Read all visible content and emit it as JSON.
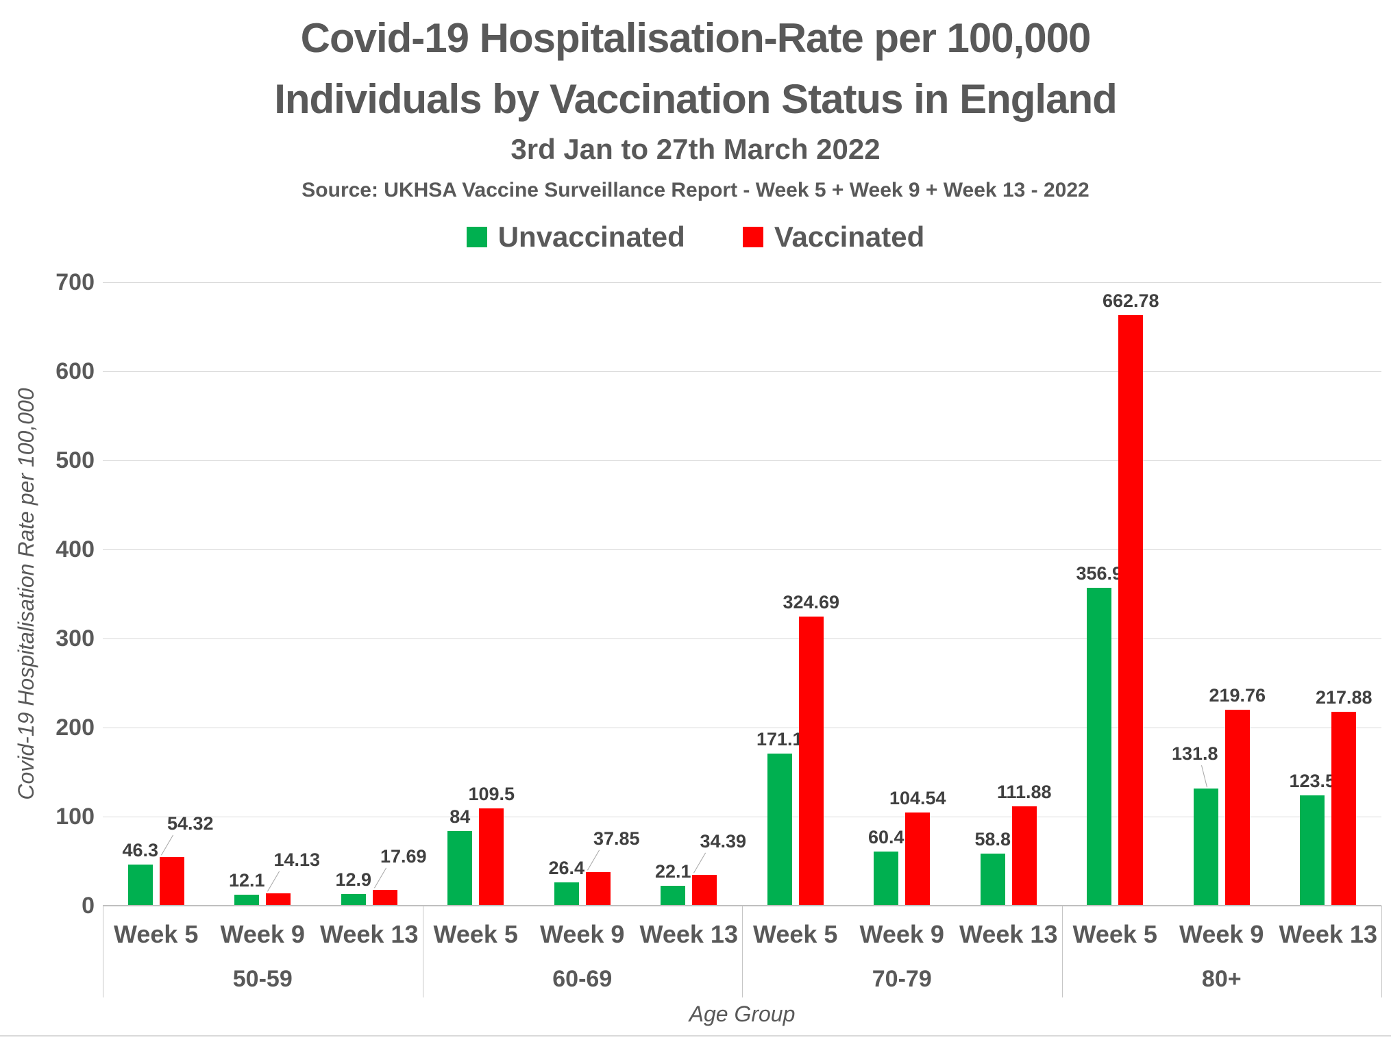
{
  "header": {
    "title_line1": "Covid-19 Hospitalisation-Rate per 100,000",
    "title_line2": "Individuals by Vaccination Status in England",
    "subtitle": "3rd Jan to 27th March 2022",
    "source": "Source: UKHSA Vaccine Surveillance Report - Week 5 + Week 9 + Week 13 - 2022"
  },
  "legend": [
    {
      "label": "Unvaccinated",
      "color": "#00B050"
    },
    {
      "label": "Vaccinated",
      "color": "#FF0000"
    }
  ],
  "chart_data": {
    "type": "bar",
    "title": "Covid-19 Hospitalisation-Rate per 100,000 Individuals by Vaccination Status in England",
    "subtitle": "3rd Jan to 27th March 2022",
    "xlabel": "Age Group",
    "ylabel": "Covid-19 Hospitalisation Rate per 100,000",
    "ylim": [
      0,
      700
    ],
    "yticks": [
      0,
      100,
      200,
      300,
      400,
      500,
      600,
      700
    ],
    "grid": true,
    "legend_position": "top",
    "age_groups": [
      "50-59",
      "60-69",
      "70-79",
      "80+"
    ],
    "weeks_per_group": [
      "Week 5",
      "Week 9",
      "Week 13"
    ],
    "categories": [
      "Week 5",
      "Week 9",
      "Week 13",
      "Week 5",
      "Week 9",
      "Week 13",
      "Week 5",
      "Week 9",
      "Week 13",
      "Week 5",
      "Week 9",
      "Week 13"
    ],
    "series": [
      {
        "name": "Unvaccinated",
        "color": "#00B050",
        "values": [
          46.3,
          12.1,
          12.9,
          84,
          26.4,
          22.1,
          171.1,
          60.4,
          58.8,
          356.9,
          131.8,
          123.5
        ],
        "labels": [
          "46.3",
          "12.1",
          "12.9",
          "84",
          "26.4",
          "22.1",
          "171.1",
          "60.4",
          "58.8",
          "356.9",
          "131.8",
          "123.5"
        ],
        "callout_indices": [
          10
        ]
      },
      {
        "name": "Vaccinated",
        "color": "#FF0000",
        "values": [
          54.32,
          14.13,
          17.69,
          109.5,
          37.85,
          34.39,
          324.69,
          104.54,
          111.88,
          662.78,
          219.76,
          217.88
        ],
        "labels": [
          "54.32",
          "14.13",
          "17.69",
          "109.5",
          "37.85",
          "34.39",
          "324.69",
          "104.54",
          "111.88",
          "662.78",
          "219.76",
          "217.88"
        ],
        "callout_indices": [
          0,
          1,
          2,
          4,
          5
        ]
      }
    ]
  }
}
